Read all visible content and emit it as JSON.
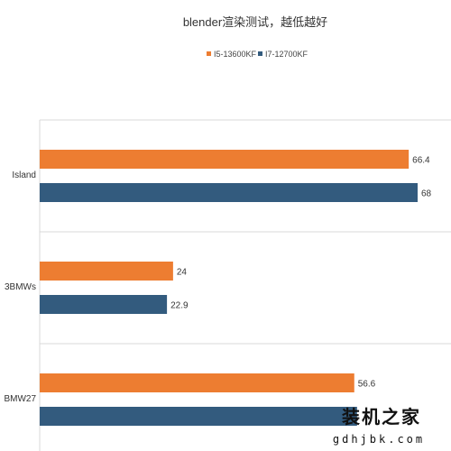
{
  "chart_data": {
    "type": "bar",
    "orientation": "horizontal",
    "title": "blender渲染测试，越低越好",
    "categories": [
      "Island",
      "3BMWs",
      "BMW27"
    ],
    "series": [
      {
        "name": "I5-13600KF",
        "color": "#ED7D31",
        "values": [
          66.4,
          24,
          56.6
        ]
      },
      {
        "name": "I7-12700KF",
        "color": "#335B7E",
        "values": [
          68,
          22.9,
          57.1
        ]
      }
    ],
    "xlim": [
      0,
      70
    ],
    "legend": "top-center",
    "grid": false
  },
  "watermark": {
    "logo_text": "装机之家",
    "url": "gdhjbk.com"
  }
}
